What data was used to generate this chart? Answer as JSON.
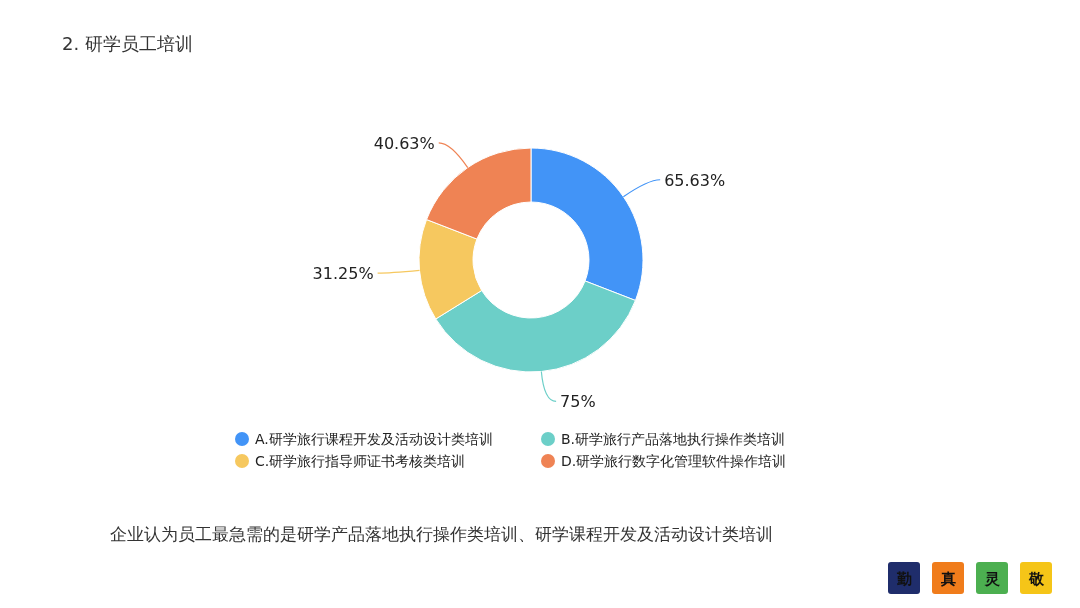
{
  "chart_data": {
    "type": "donut",
    "title": "2. 研学员工培训",
    "categories": [
      "A.研学旅行课程开发及活动设计类培训",
      "B.研学旅行产品落地执行操作类培训",
      "C.研学旅行指导师证书考核类培训",
      "D.研学旅行数字化管理软件操作培训"
    ],
    "values": [
      65.63,
      75,
      31.25,
      40.63
    ],
    "value_labels": [
      "65.63%",
      "75%",
      "31.25%",
      "40.63%"
    ],
    "colors": [
      "#4294f7",
      "#6ccfc8",
      "#f6c85f",
      "#ef8354"
    ],
    "legend": "bottom",
    "annotations": [
      "企业认为员工最急需的是研学产品落地执行操作类培训、研学课程开发及活动设计类培训",
      "勤",
      "真",
      "灵",
      "敬"
    ]
  }
}
